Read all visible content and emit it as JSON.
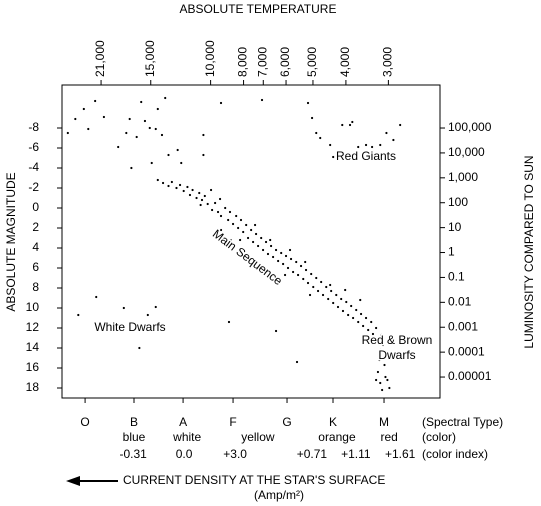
{
  "chart_data": {
    "type": "scatter",
    "title": "ABSOLUTE TEMPERATURE",
    "y_label": "ABSOLUTE MAGNITUDE",
    "y2_label": "LUMINOSITY COMPARED TO SUN",
    "footer": [
      "CURRENT DENSITY AT THE STAR'S SURFACE",
      "(Amp/m²)"
    ],
    "annotations": [
      "Red Giants",
      "Main Sequence",
      "White Dwarfs",
      "Red & Brown",
      "Dwarfs"
    ],
    "color": "#000000",
    "xscale": "log",
    "xlim": [
      27360,
      2115
    ],
    "xticks": [
      {
        "value": 21000,
        "label": "21,000"
      },
      {
        "value": 15000,
        "label": "15,000"
      },
      {
        "value": 10000,
        "label": "10,000"
      },
      {
        "value": 8000,
        "label": "8,000"
      },
      {
        "value": 7000,
        "label": "7,000"
      },
      {
        "value": 6000,
        "label": "6,000"
      },
      {
        "value": 5000,
        "label": "5,000"
      },
      {
        "value": 4000,
        "label": "4,000"
      },
      {
        "value": 3000,
        "label": "3,000"
      }
    ],
    "ylim": [
      19,
      -12.3
    ],
    "yticks": [
      -8,
      -6,
      -4,
      -2,
      0,
      2,
      4,
      6,
      8,
      10,
      12,
      14,
      16,
      18
    ],
    "y2scale": "log",
    "y2lim": [
      1.44e-06,
      5340000
    ],
    "y2ticks": [
      {
        "value": 100000,
        "label": "100,000"
      },
      {
        "value": 10000,
        "label": "10,000"
      },
      {
        "value": 1000,
        "label": "1,000"
      },
      100,
      10,
      1,
      0.1,
      0.01,
      0.001,
      0.0001,
      1e-05
    ],
    "spectral_rows": [
      {
        "label": "(Spectral Type)",
        "ticks": [
          {
            "value": 23400,
            "label": "O"
          },
          {
            "value": 16800,
            "label": "B"
          },
          {
            "value": 12050,
            "label": "A"
          },
          {
            "value": 8590,
            "label": "F"
          },
          {
            "value": 5960,
            "label": "G"
          },
          {
            "value": 4365,
            "label": "K"
          },
          {
            "value": 3090,
            "label": "M"
          }
        ]
      },
      {
        "label": "(color)",
        "ticks": [
          {
            "value": 16800,
            "label": "blue"
          },
          {
            "value": 11720,
            "label": "white"
          },
          {
            "value": 7260,
            "label": "yellow"
          },
          {
            "value": 4250,
            "label": "orange"
          },
          {
            "value": 2985,
            "label": "red"
          }
        ]
      },
      {
        "label": "(color index)",
        "ticks": [
          {
            "value": 16900,
            "label": "-0.31"
          },
          {
            "value": 11970,
            "label": "0.0"
          },
          {
            "value": 8470,
            "label": "+3.0"
          },
          {
            "value": 5035,
            "label": "+0.71"
          },
          {
            "value": 3740,
            "label": "+1.11"
          },
          {
            "value": 2770,
            "label": "+1.61"
          }
        ]
      }
    ],
    "x": [
      26300,
      25000,
      23600,
      22900,
      21860,
      20600,
      18700,
      17700,
      17300,
      16500,
      16000,
      15600,
      17100,
      15100,
      14500,
      14900,
      14300,
      13600,
      13900,
      13300,
      12500,
      12200,
      10500,
      9320,
      10500,
      7060,
      5170,
      5030,
      4890,
      4760,
      4450,
      4100,
      3890,
      3680,
      3490,
      3350,
      3170,
      3040,
      2900,
      2770,
      4360,
      3830,
      14300,
      13800,
      13300,
      13000,
      12600,
      12300,
      12000,
      11700,
      11500,
      11300,
      11000,
      10800,
      10600,
      10400,
      10200,
      9970,
      9900,
      9700,
      9510,
      9380,
      9320,
      9060,
      8880,
      8770,
      8590,
      8410,
      8300,
      8140,
      8020,
      7860,
      7760,
      7600,
      7500,
      7350,
      7250,
      7100,
      7010,
      6870,
      6780,
      6640,
      6550,
      6420,
      6330,
      6200,
      6120,
      6000,
      5920,
      5800,
      5720,
      5600,
      5530,
      5420,
      5340,
      5240,
      5170,
      5060,
      4990,
      4890,
      4830,
      4730,
      4670,
      4570,
      4510,
      4420,
      4360,
      4270,
      4220,
      4130,
      4080,
      3990,
      3940,
      3860,
      3810,
      3730,
      3680,
      3610,
      3560,
      3490,
      3440,
      3370,
      3330,
      3260,
      3220,
      3150,
      3170,
      3110,
      3190,
      3080,
      3220,
      3060,
      3170,
      3020,
      3130,
      2980,
      3260,
      10700,
      9320,
      8190,
      7400,
      6680,
      5840,
      5270,
      4450,
      4020,
      3630,
      5100,
      6040,
      24500,
      21700,
      18000,
      16200,
      15300,
      14500,
      16100,
      8830,
      6420,
      5570
    ],
    "values": [
      -7.5,
      -8.9,
      -9.9,
      -7.9,
      -10.7,
      -9.1,
      -6.1,
      -7.5,
      -8.9,
      -7.1,
      -10.6,
      -8.7,
      -4.0,
      -8.0,
      -7.9,
      -4.5,
      -9.9,
      -11.0,
      -7.3,
      -5.3,
      -5.8,
      -4.5,
      -7.3,
      -10.5,
      -5.3,
      -10.8,
      -10.5,
      -9.0,
      -7.5,
      -7.0,
      -6.3,
      -8.3,
      -8.3,
      -6.1,
      -6.3,
      -6.1,
      -6.3,
      -7.5,
      -6.8,
      -8.3,
      -5.1,
      -8.6,
      -2.8,
      -2.5,
      -2.2,
      -2.6,
      -2.0,
      -2.3,
      -1.7,
      -2.1,
      -1.3,
      -1.8,
      -1.0,
      -1.5,
      -0.8,
      -1.2,
      -0.4,
      -1.8,
      0.2,
      -0.5,
      0.4,
      -0.9,
      0.8,
      0.0,
      1.2,
      0.4,
      1.6,
      0.8,
      2.0,
      1.2,
      2.4,
      1.7,
      3.0,
      2.2,
      3.4,
      2.6,
      3.8,
      3.0,
      4.2,
      3.4,
      4.6,
      3.8,
      4.9,
      4.2,
      5.3,
      4.5,
      5.6,
      4.8,
      6.0,
      5.1,
      6.4,
      5.4,
      6.7,
      5.8,
      7.1,
      6.2,
      7.5,
      6.6,
      7.9,
      7.0,
      8.3,
      7.4,
      8.7,
      7.9,
      9.1,
      8.3,
      9.5,
      8.7,
      9.9,
      9.1,
      10.3,
      9.4,
      10.7,
      9.8,
      11.0,
      10.2,
      11.4,
      10.6,
      11.8,
      11.0,
      12.2,
      11.4,
      12.6,
      12.0,
      13.2,
      12.7,
      14.2,
      13.7,
      15.2,
      15.7,
      16.4,
      16.9,
      17.5,
      17.2,
      18.2,
      18.0,
      17.2,
      -0.3,
      2.2,
      3.2,
      1.7,
      3.2,
      4.2,
      5.4,
      7.7,
      8.2,
      9.2,
      8.7,
      6.7,
      10.7,
      8.9,
      10.0,
      14.0,
      10.7,
      9.9,
      12.0,
      11.4,
      12.3,
      15.4
    ]
  }
}
